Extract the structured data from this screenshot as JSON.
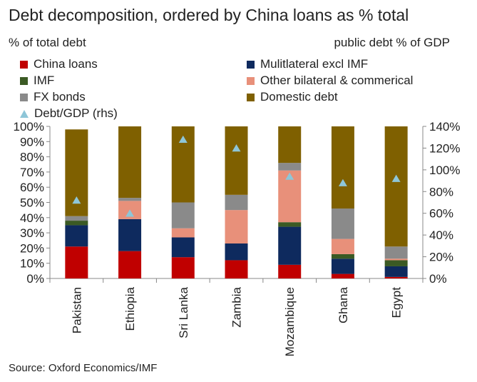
{
  "header": {
    "title": "Debt decomposition, ordered by China loans as % total",
    "left_axis_caption": "% of total debt",
    "right_axis_caption": "public debt % of GDP"
  },
  "footer": {
    "source": "Source: Oxford Economics/IMF"
  },
  "chart_data": {
    "type": "bar",
    "stacked": true,
    "title": "Debt decomposition, ordered by China loans as % total",
    "categories": [
      "Pakistan",
      "Ethiopia",
      "Sri Lanka",
      "Zambia",
      "Mozambique",
      "Ghana",
      "Egypt"
    ],
    "ylim": [
      0,
      100
    ],
    "y2lim": [
      0,
      140
    ],
    "yticks": [
      "0%",
      "10%",
      "20%",
      "30%",
      "40%",
      "50%",
      "60%",
      "70%",
      "80%",
      "90%",
      "100%"
    ],
    "y2ticks": [
      "0%",
      "20%",
      "40%",
      "60%",
      "80%",
      "100%",
      "120%",
      "140%"
    ],
    "grid": false,
    "legend_position": "top",
    "series": [
      {
        "name": "China loans",
        "color": "#c00000",
        "values": [
          21,
          18,
          14,
          12,
          9,
          3,
          1
        ]
      },
      {
        "name": "Mulitlateral excl IMF",
        "color": "#0e2a5e",
        "values": [
          14,
          21,
          13,
          11,
          25,
          10,
          7
        ]
      },
      {
        "name": "IMF",
        "color": "#3b5a24",
        "values": [
          3,
          0,
          0,
          0,
          3,
          3,
          4
        ]
      },
      {
        "name": "Other bilateral & commerical",
        "color": "#e8907a",
        "values": [
          0,
          12,
          6,
          22,
          34,
          10,
          1
        ]
      },
      {
        "name": "FX bonds",
        "color": "#8a8a8a",
        "values": [
          3,
          2,
          17,
          10,
          5,
          20,
          8
        ]
      },
      {
        "name": "Domestic debt",
        "color": "#7f6000",
        "values": [
          57,
          47,
          50,
          45,
          24,
          54,
          79
        ]
      }
    ],
    "line_series": {
      "name": "Debt/GDP (rhs)",
      "color": "#8ec6d8",
      "marker": "triangle",
      "axis": "right",
      "values": [
        72,
        60,
        128,
        120,
        94,
        88,
        92
      ]
    }
  }
}
